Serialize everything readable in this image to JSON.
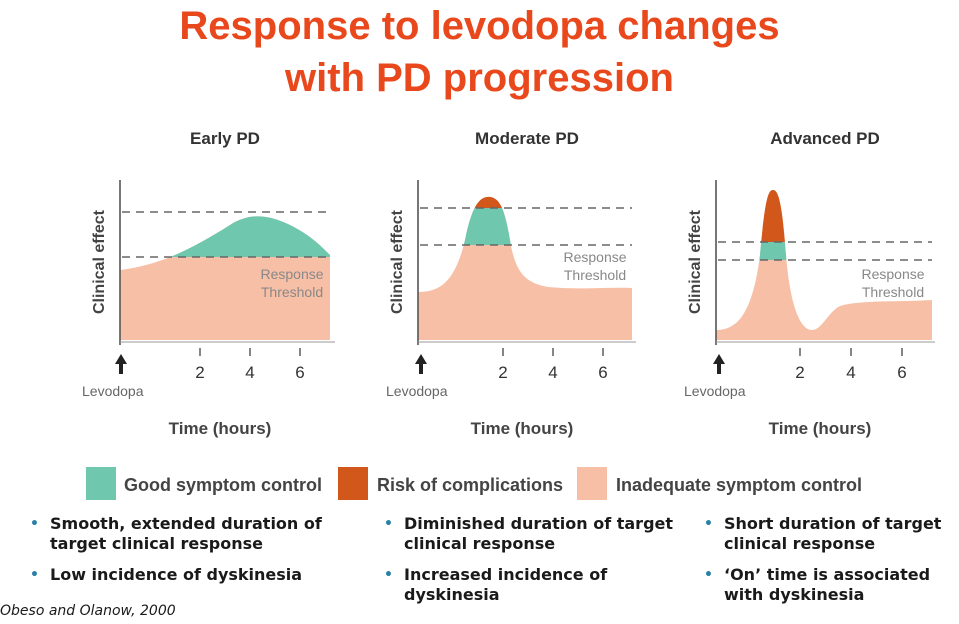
{
  "title_line1": "Response to levodopa changes",
  "title_line2": "with PD progression",
  "colors": {
    "title": "#e8481c",
    "good": "#6fc7ad",
    "risk": "#d2571b",
    "inadequate": "#f7bfa6",
    "bullet": "#2a7fa8"
  },
  "panels": [
    {
      "title": "Early PD",
      "ylabel": "Clinical effect",
      "threshold_label_1": "Response",
      "threshold_label_2": "Threshold",
      "dose_label": "Levodopa",
      "xlabel": "Time (hours)",
      "ticks": [
        "2",
        "4",
        "6"
      ]
    },
    {
      "title": "Moderate PD",
      "ylabel": "Clinical effect",
      "threshold_label_1": "Response",
      "threshold_label_2": "Threshold",
      "dose_label": "Levodopa",
      "xlabel": "Time (hours)",
      "ticks": [
        "2",
        "4",
        "6"
      ]
    },
    {
      "title": "Advanced PD",
      "ylabel": "Clinical effect",
      "threshold_label_1": "Response",
      "threshold_label_2": "Threshold",
      "dose_label": "Levodopa",
      "xlabel": "Time (hours)",
      "ticks": [
        "2",
        "4",
        "6"
      ]
    }
  ],
  "legend": {
    "good": "Good symptom control",
    "risk": "Risk of complications",
    "inadequate": "Inadequate symptom control"
  },
  "bullets": [
    [
      "Smooth, extended duration of target clinical response",
      "Low incidence of dyskinesia"
    ],
    [
      "Diminished duration of target clinical response",
      "Increased incidence of dyskinesia"
    ],
    [
      "Short duration of target clinical response",
      "‘On’ time is associated with dyskinesia"
    ]
  ],
  "citation": "Obeso and Olanow, 2000"
}
